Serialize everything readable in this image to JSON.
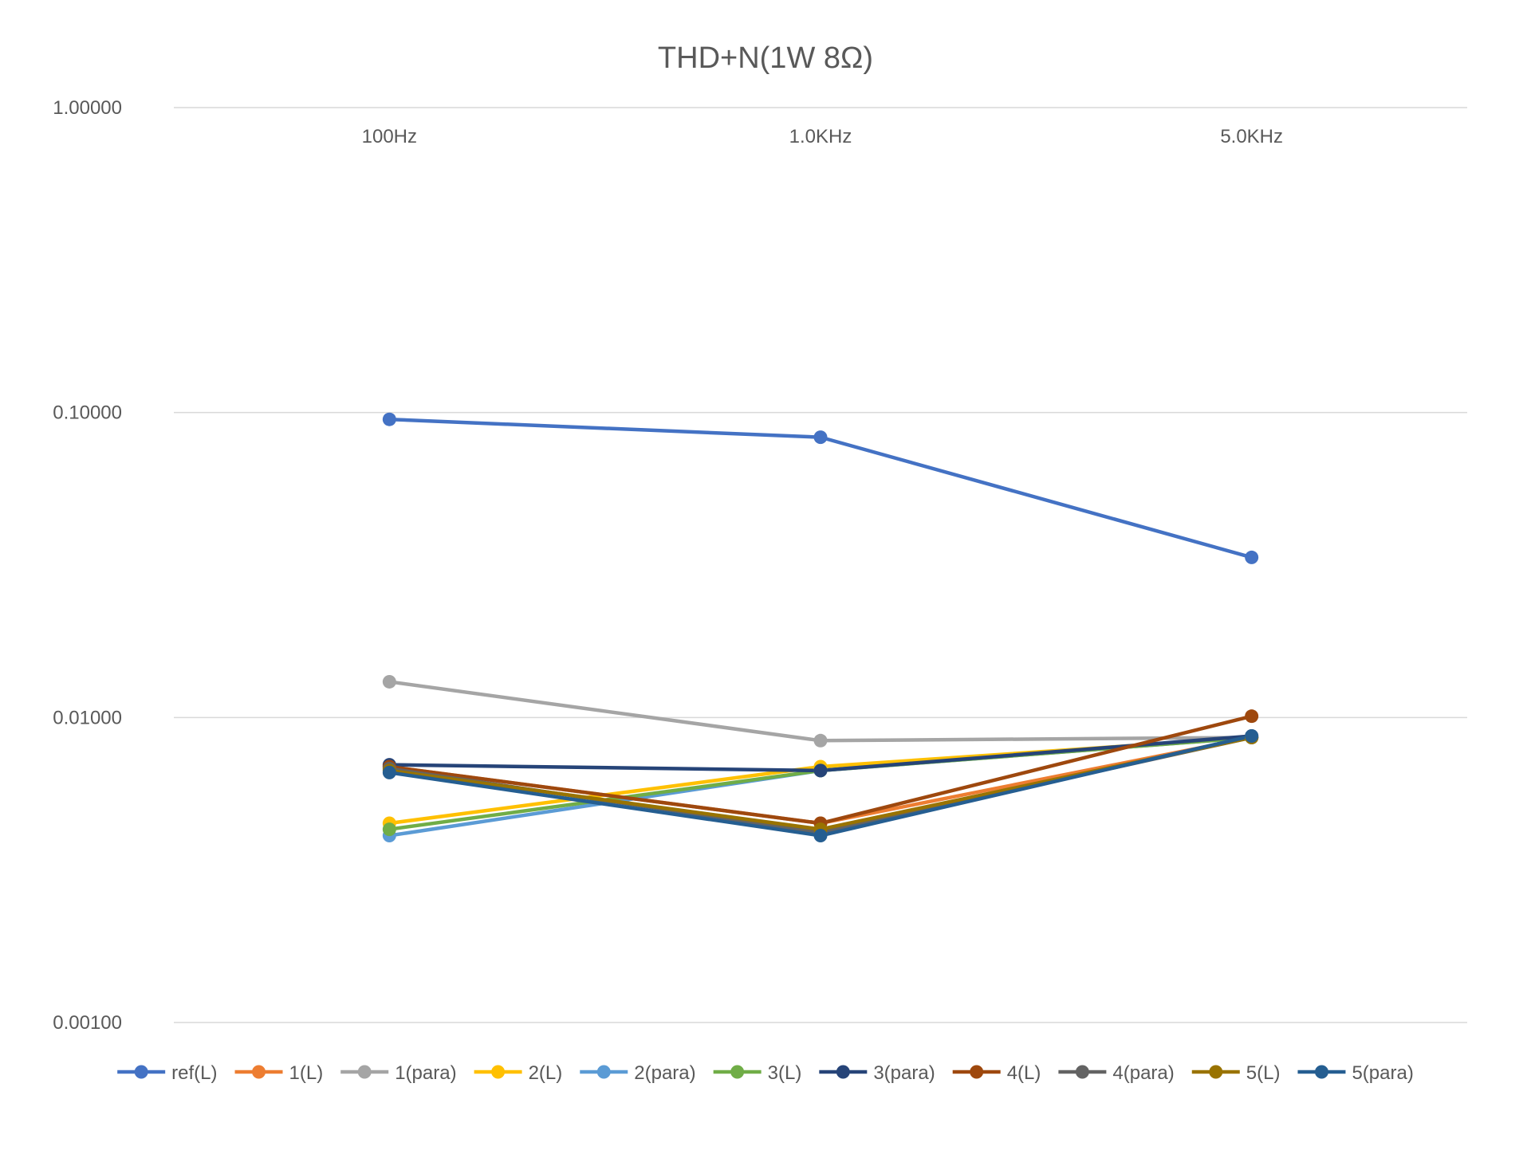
{
  "chart_data": {
    "type": "line",
    "title": "THD+N(1W 8Ω)",
    "xlabel": "",
    "ylabel": "",
    "y_scale": "log",
    "ylim": [
      0.001,
      1
    ],
    "y_ticks": [
      {
        "value": 1,
        "label": "1.00000"
      },
      {
        "value": 0.1,
        "label": "0.10000"
      },
      {
        "value": 0.01,
        "label": "0.01000"
      },
      {
        "value": 0.001,
        "label": "0.00100"
      }
    ],
    "categories": [
      "100Hz",
      "1.0KHz",
      "5.0KHz"
    ],
    "category_labels_position": "top",
    "grid": "horizontal",
    "legend_position": "bottom",
    "series": [
      {
        "name": "ref(L)",
        "color": "#4472C4",
        "values": [
          0.095,
          0.083,
          0.0335
        ]
      },
      {
        "name": "1(L)",
        "color": "#ED7D31",
        "values": [
          0.0069,
          0.0045,
          0.0086
        ]
      },
      {
        "name": "1(para)",
        "color": "#A5A5A5",
        "values": [
          0.0131,
          0.0084,
          0.0086
        ]
      },
      {
        "name": "2(L)",
        "color": "#FFC000",
        "values": [
          0.0045,
          0.0069,
          0.0086
        ]
      },
      {
        "name": "2(para)",
        "color": "#5B9BD5",
        "values": [
          0.0041,
          0.0067,
          0.0086
        ]
      },
      {
        "name": "3(L)",
        "color": "#70AD47",
        "values": [
          0.0043,
          0.0067,
          0.0086
        ]
      },
      {
        "name": "3(para)",
        "color": "#264478",
        "values": [
          0.007,
          0.0067,
          0.0087
        ]
      },
      {
        "name": "4(L)",
        "color": "#9E480E",
        "values": [
          0.0069,
          0.0045,
          0.0101
        ]
      },
      {
        "name": "4(para)",
        "color": "#636363",
        "values": [
          0.0068,
          0.0042,
          0.0086
        ]
      },
      {
        "name": "5(L)",
        "color": "#997300",
        "values": [
          0.0067,
          0.0043,
          0.0086
        ]
      },
      {
        "name": "5(para)",
        "color": "#255E91",
        "values": [
          0.0066,
          0.0041,
          0.0087
        ]
      }
    ]
  }
}
